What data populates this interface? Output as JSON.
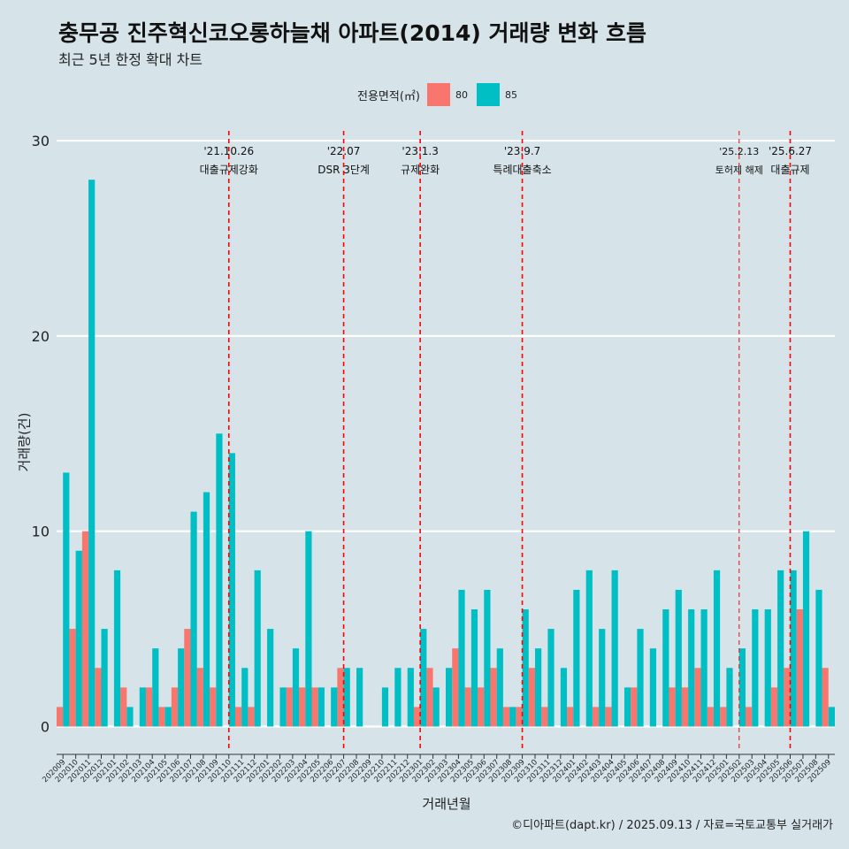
{
  "title": "충무공 진주혁신코오롱하늘채 아파트(2014) 거래량 변화 흐름",
  "subtitle": "최근 5년 한정 확대 차트",
  "caption": "©디아파트(dapt.kr) / 2025.09.13 / 자료=국토교통부 실거래가",
  "colors": {
    "s80": "#f8766d",
    "s85": "#00bfc4",
    "grid": "#ffffff",
    "event": "#ff0000",
    "background": "#d6e4ea"
  },
  "chart_data": {
    "type": "bar",
    "xlabel": "거래년월",
    "ylabel": "거래량(건)",
    "ylim": [
      -1.2,
      30.5
    ],
    "yticks": [
      0,
      10,
      20,
      30
    ],
    "grid": true,
    "legend": {
      "title": "전용면적(㎡)",
      "position": "top"
    },
    "categories": [
      "202009",
      "202010",
      "202011",
      "202012",
      "202101",
      "202102",
      "202103",
      "202104",
      "202105",
      "202106",
      "202107",
      "202108",
      "202109",
      "202110",
      "202111",
      "202112",
      "202201",
      "202202",
      "202203",
      "202204",
      "202205",
      "202206",
      "202207",
      "202208",
      "202209",
      "202210",
      "202211",
      "202212",
      "202301",
      "202302",
      "202303",
      "202304",
      "202305",
      "202306",
      "202307",
      "202308",
      "202309",
      "202310",
      "202311",
      "202312",
      "202401",
      "202402",
      "202403",
      "202404",
      "202405",
      "202406",
      "202407",
      "202408",
      "202409",
      "202410",
      "202411",
      "202412",
      "202501",
      "202502",
      "202503",
      "202504",
      "202505",
      "202506",
      "202507",
      "202508",
      "202509"
    ],
    "series": [
      {
        "name": "80",
        "values": [
          1,
          5,
          10,
          3,
          0,
          2,
          0,
          2,
          1,
          2,
          5,
          3,
          2,
          0,
          1,
          1,
          0,
          0,
          2,
          2,
          2,
          0,
          3,
          0,
          0,
          0,
          0,
          0,
          1,
          3,
          0,
          4,
          2,
          2,
          3,
          1,
          1,
          3,
          1,
          0,
          1,
          0,
          1,
          1,
          0,
          2,
          0,
          0,
          2,
          2,
          3,
          1,
          1,
          0,
          1,
          0,
          2,
          3,
          6,
          0,
          3
        ]
      },
      {
        "name": "85",
        "values": [
          13,
          9,
          28,
          5,
          8,
          1,
          2,
          4,
          1,
          4,
          11,
          12,
          15,
          14,
          3,
          8,
          5,
          2,
          4,
          10,
          2,
          2,
          3,
          3,
          0,
          2,
          3,
          3,
          5,
          2,
          3,
          7,
          6,
          7,
          4,
          1,
          6,
          4,
          5,
          3,
          7,
          8,
          5,
          8,
          2,
          5,
          4,
          6,
          7,
          6,
          6,
          8,
          3,
          4,
          6,
          6,
          8,
          8,
          10,
          7,
          1
        ]
      }
    ],
    "events": [
      {
        "at": "202110",
        "date": "'21.10.26",
        "label": "대출규제강화",
        "style": "dashed"
      },
      {
        "at": "202207",
        "date": "'22.07",
        "label": "DSR 3단계",
        "style": "dashed"
      },
      {
        "at": "202301",
        "date": "'23.1.3",
        "label": "규제완화",
        "style": "dashed"
      },
      {
        "at": "202309",
        "date": "'23.9.7",
        "label": "특례대출축소",
        "style": "dashed"
      },
      {
        "at": "202502",
        "date": "'25.2.13",
        "label": "토허제 해제",
        "style": "thin"
      },
      {
        "at": "202506",
        "date": "'25.6.27",
        "label": "대출규제",
        "style": "dashed"
      }
    ]
  }
}
